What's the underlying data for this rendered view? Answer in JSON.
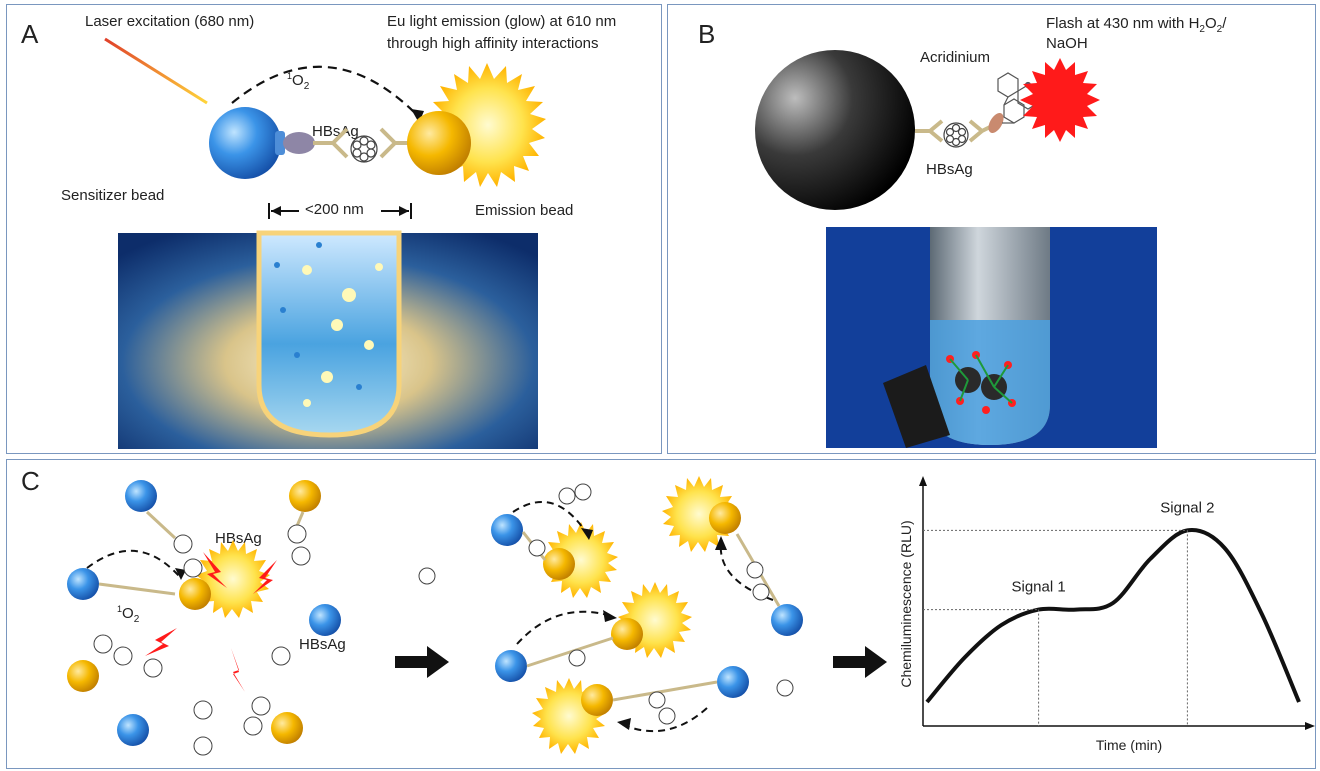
{
  "panel_a": {
    "label": "A",
    "laser_text": "Laser excitation (680 nm)",
    "emission_line1": "Eu light emission (glow) at 610 nm",
    "emission_line2": "through high affinity interactions",
    "singlet_oxygen_sup": "1",
    "singlet_oxygen": "O",
    "singlet_oxygen_sub": "2",
    "antigen": "HBsAg",
    "sensitizer": "Sensitizer bead",
    "emission_bead": "Emission bead",
    "distance": "<200 nm"
  },
  "panel_b": {
    "label": "B",
    "acridinium": "Acridinium",
    "flash_line1": "Flash at 430 nm with H",
    "flash_sub1": "2",
    "flash_o": "O",
    "flash_sub2": "2",
    "flash_slash": "/",
    "flash_line2": "NaOH",
    "antigen": "HBsAg"
  },
  "panel_c": {
    "label": "C",
    "antigen_1": "HBsAg",
    "antigen_2": "HBsAg",
    "singlet_oxygen_sup": "1",
    "singlet_oxygen": "O",
    "singlet_oxygen_sub": "2"
  },
  "chart_data": {
    "type": "line",
    "ylabel": "Chemiluminescence (RLU)",
    "xlabel": "Time (min)",
    "annotations": [
      "Signal 1",
      "Signal 2"
    ],
    "x": [
      0,
      1,
      2,
      3,
      4,
      5,
      6,
      7,
      8,
      9,
      10
    ],
    "y": [
      0.1,
      0.3,
      0.45,
      0.52,
      0.52,
      0.55,
      0.75,
      0.88,
      0.8,
      0.5,
      0.1
    ]
  },
  "colors": {
    "panel_border": "#7a97bf",
    "sensitizer_blue": "#2f8be0",
    "emission_gold": "#f5b800",
    "flash_red": "#ff1a1a",
    "tube_blue": "#2a73c4"
  }
}
